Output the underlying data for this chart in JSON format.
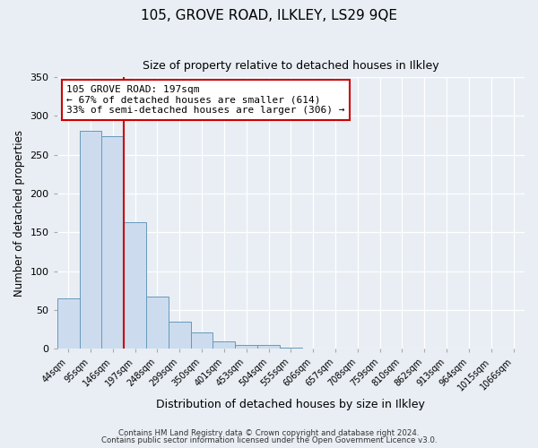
{
  "title": "105, GROVE ROAD, ILKLEY, LS29 9QE",
  "subtitle": "Size of property relative to detached houses in Ilkley",
  "xlabel": "Distribution of detached houses by size in Ilkley",
  "ylabel": "Number of detached properties",
  "categories": [
    "44sqm",
    "95sqm",
    "146sqm",
    "197sqm",
    "248sqm",
    "299sqm",
    "350sqm",
    "401sqm",
    "453sqm",
    "504sqm",
    "555sqm",
    "606sqm",
    "657sqm",
    "708sqm",
    "759sqm",
    "810sqm",
    "862sqm",
    "913sqm",
    "964sqm",
    "1015sqm",
    "1066sqm"
  ],
  "values": [
    65,
    281,
    274,
    163,
    67,
    35,
    21,
    10,
    5,
    5,
    2,
    0,
    1,
    0,
    1,
    0,
    0,
    1,
    0,
    1,
    1
  ],
  "bar_color": "#ccdcee",
  "bar_edge_color": "#6699bb",
  "vline_x": 2.5,
  "vline_color": "#cc0000",
  "annotation_title": "105 GROVE ROAD: 197sqm",
  "annotation_line1": "← 67% of detached houses are smaller (614)",
  "annotation_line2": "33% of semi-detached houses are larger (306) →",
  "annotation_box_color": "#cc0000",
  "ylim": [
    0,
    350
  ],
  "yticks": [
    0,
    50,
    100,
    150,
    200,
    250,
    300,
    350
  ],
  "footer1": "Contains HM Land Registry data © Crown copyright and database right 2024.",
  "footer2": "Contains public sector information licensed under the Open Government Licence v3.0.",
  "bg_color": "#e8eef4",
  "plot_bg_color": "#e8eef4"
}
